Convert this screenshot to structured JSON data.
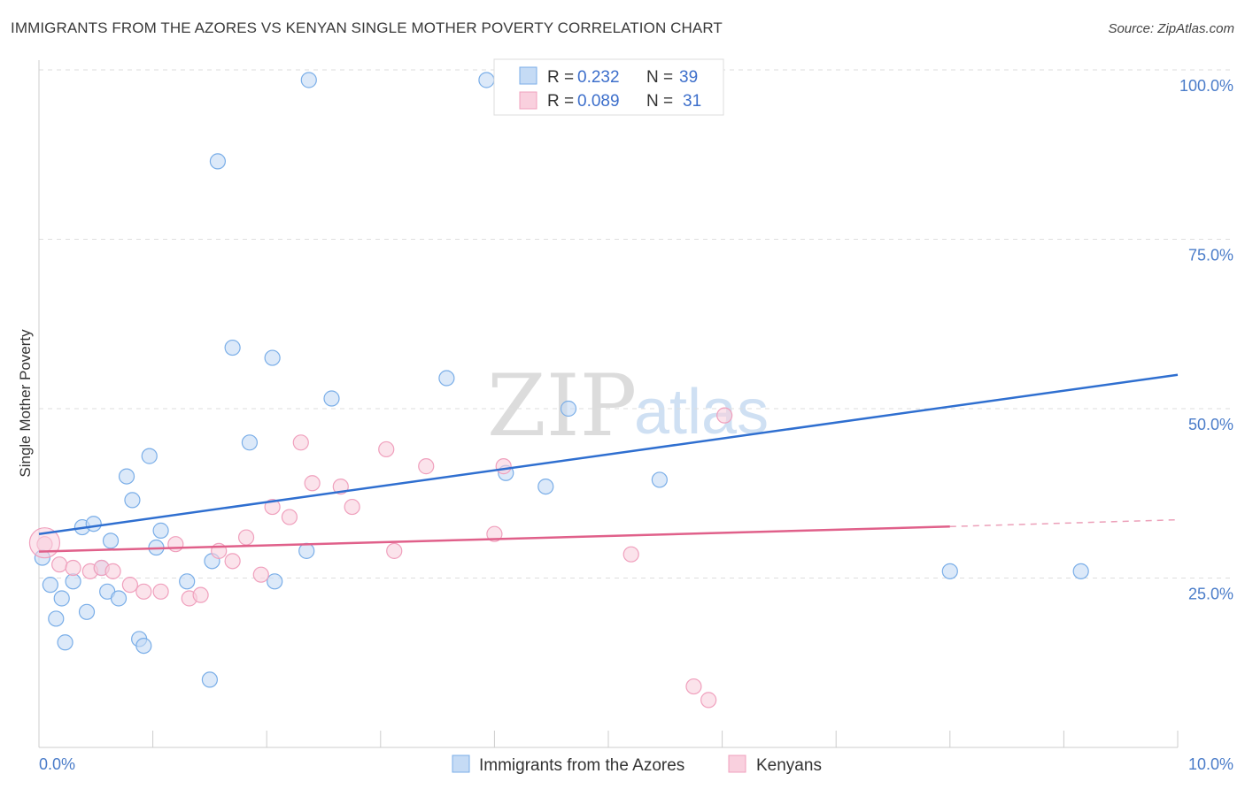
{
  "title": "IMMIGRANTS FROM THE AZORES VS KENYAN SINGLE MOTHER POVERTY CORRELATION CHART",
  "source": "Source: ZipAtlas.com",
  "watermark": {
    "zip": "ZIP",
    "atlas": "atlas"
  },
  "chart_data": {
    "type": "scatter",
    "ylabel": "Single Mother Poverty",
    "xlim": [
      0,
      10
    ],
    "ylim": [
      0,
      100
    ],
    "x_tick_labels": [
      "0.0%",
      "10.0%"
    ],
    "y_ticks": [
      25,
      50,
      75,
      100
    ],
    "y_tick_labels": [
      "25.0%",
      "50.0%",
      "75.0%",
      "100.0%"
    ],
    "legend": {
      "r_label": "R =",
      "n_label": "N =",
      "entries": [
        {
          "r": "0.232",
          "n": "39"
        },
        {
          "r": "0.089",
          "n": "31"
        }
      ]
    },
    "series": [
      {
        "name": "Immigrants from the Azores",
        "color": "#7aaee8",
        "fill": "#c5dbf5",
        "trend": {
          "x0": 0,
          "y0": 31.5,
          "x1": 10,
          "y1": 55.0,
          "color": "#2f6fd0"
        },
        "points": [
          [
            0.03,
            28
          ],
          [
            0.1,
            24
          ],
          [
            0.15,
            19
          ],
          [
            0.2,
            22
          ],
          [
            0.23,
            15.5
          ],
          [
            0.3,
            24.5
          ],
          [
            0.38,
            32.5
          ],
          [
            0.42,
            20
          ],
          [
            0.48,
            33
          ],
          [
            0.55,
            26.5
          ],
          [
            0.6,
            23
          ],
          [
            0.63,
            30.5
          ],
          [
            0.7,
            22
          ],
          [
            0.77,
            40
          ],
          [
            0.82,
            36.5
          ],
          [
            0.88,
            16
          ],
          [
            0.92,
            15
          ],
          [
            0.97,
            43
          ],
          [
            1.03,
            29.5
          ],
          [
            1.07,
            32
          ],
          [
            1.3,
            24.5
          ],
          [
            1.5,
            10
          ],
          [
            1.52,
            27.5
          ],
          [
            1.57,
            86.5
          ],
          [
            1.7,
            59
          ],
          [
            1.85,
            45
          ],
          [
            2.05,
            57.5
          ],
          [
            2.07,
            24.5
          ],
          [
            2.35,
            29
          ],
          [
            2.37,
            98.5
          ],
          [
            2.57,
            51.5
          ],
          [
            3.58,
            54.5
          ],
          [
            3.93,
            98.5
          ],
          [
            4.1,
            40.5
          ],
          [
            4.45,
            38.5
          ],
          [
            4.65,
            50
          ],
          [
            5.45,
            39.5
          ],
          [
            8.0,
            26
          ],
          [
            9.15,
            26
          ]
        ]
      },
      {
        "name": "Kenyans",
        "color": "#f0a0bd",
        "fill": "#f9d0de",
        "trend": {
          "x0": 0,
          "y0": 28.9,
          "x1": 8.0,
          "y1": 32.6,
          "dash_x1": 10,
          "dash_y1": 33.6,
          "color": "#e0608a"
        },
        "points": [
          [
            0.05,
            30
          ],
          [
            0.18,
            27
          ],
          [
            0.3,
            26.5
          ],
          [
            0.45,
            26
          ],
          [
            0.55,
            26.5
          ],
          [
            0.65,
            26
          ],
          [
            0.8,
            24
          ],
          [
            0.92,
            23
          ],
          [
            1.07,
            23
          ],
          [
            1.2,
            30
          ],
          [
            1.32,
            22
          ],
          [
            1.42,
            22.5
          ],
          [
            1.58,
            29
          ],
          [
            1.7,
            27.5
          ],
          [
            1.82,
            31
          ],
          [
            1.95,
            25.5
          ],
          [
            2.05,
            35.5
          ],
          [
            2.2,
            34
          ],
          [
            2.3,
            45
          ],
          [
            2.4,
            39
          ],
          [
            2.65,
            38.5
          ],
          [
            2.75,
            35.5
          ],
          [
            3.05,
            44
          ],
          [
            3.12,
            29
          ],
          [
            3.4,
            41.5
          ],
          [
            4.08,
            41.5
          ],
          [
            4.0,
            31.5
          ],
          [
            5.2,
            28.5
          ],
          [
            5.75,
            9
          ],
          [
            5.88,
            7
          ],
          [
            6.02,
            49
          ]
        ]
      }
    ]
  }
}
